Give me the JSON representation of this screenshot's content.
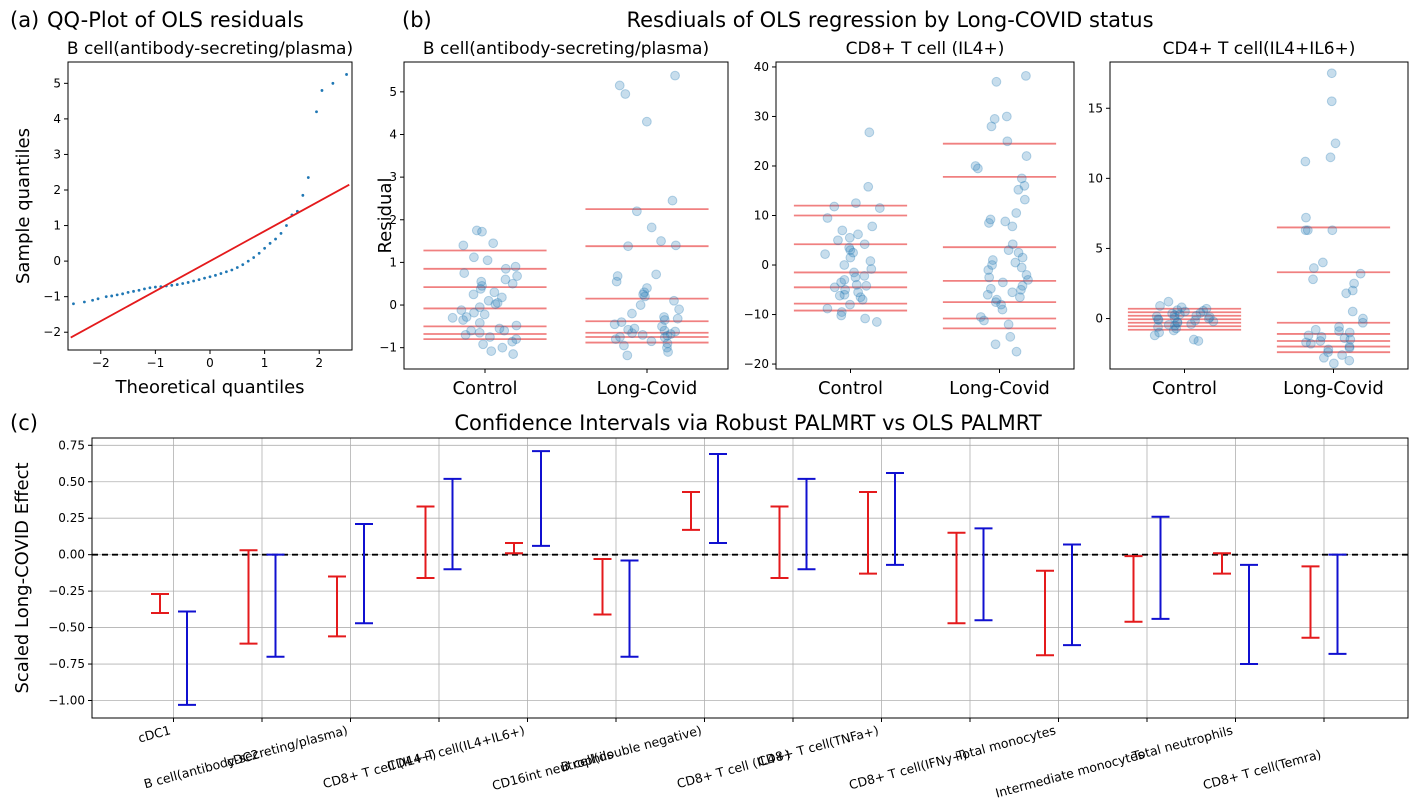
{
  "figure": {
    "panel_a_letter": "(a)",
    "panel_b_letter": "(b)",
    "panel_c_letter": "(c)",
    "panel_b_suptitle": "Resdiuals of OLS regression by Long-COVID status"
  },
  "chart_data": [
    {
      "id": "qq",
      "type": "scatter",
      "title": "QQ-Plot of OLS residuals",
      "subtitle": "B cell(antibody-secreting/plasma)",
      "xlabel": "Theoretical quantiles",
      "ylabel": "Sample quantiles",
      "xlim": [
        -2.6,
        2.6
      ],
      "ylim": [
        -2.5,
        5.6
      ],
      "xticks": [
        -2,
        -1,
        0,
        1,
        2
      ],
      "yticks": [
        -2,
        -1,
        0,
        1,
        2,
        3,
        4,
        5
      ],
      "grid": false,
      "point_color": "#1f77b4",
      "line_color": "#e41a1c",
      "reference_line": {
        "x": [
          -2.55,
          2.55
        ],
        "y": [
          -2.15,
          2.15
        ]
      },
      "points": [
        [
          -2.5,
          -1.2
        ],
        [
          -2.3,
          -1.15
        ],
        [
          -2.15,
          -1.1
        ],
        [
          -2.05,
          -1.06
        ],
        [
          -1.9,
          -1.0
        ],
        [
          -1.8,
          -0.98
        ],
        [
          -1.7,
          -0.95
        ],
        [
          -1.6,
          -0.92
        ],
        [
          -1.5,
          -0.88
        ],
        [
          -1.4,
          -0.85
        ],
        [
          -1.3,
          -0.82
        ],
        [
          -1.2,
          -0.78
        ],
        [
          -1.1,
          -0.75
        ],
        [
          -1.0,
          -0.73
        ],
        [
          -0.9,
          -0.72
        ],
        [
          -0.8,
          -0.7
        ],
        [
          -0.7,
          -0.68
        ],
        [
          -0.6,
          -0.66
        ],
        [
          -0.5,
          -0.63
        ],
        [
          -0.4,
          -0.6
        ],
        [
          -0.3,
          -0.56
        ],
        [
          -0.2,
          -0.52
        ],
        [
          -0.1,
          -0.48
        ],
        [
          0.0,
          -0.44
        ],
        [
          0.1,
          -0.4
        ],
        [
          0.2,
          -0.35
        ],
        [
          0.3,
          -0.3
        ],
        [
          0.4,
          -0.25
        ],
        [
          0.5,
          -0.18
        ],
        [
          0.6,
          -0.1
        ],
        [
          0.7,
          0.0
        ],
        [
          0.8,
          0.1
        ],
        [
          0.9,
          0.22
        ],
        [
          1.0,
          0.36
        ],
        [
          1.1,
          0.5
        ],
        [
          1.2,
          0.62
        ],
        [
          1.3,
          0.78
        ],
        [
          1.4,
          1.0
        ],
        [
          1.5,
          1.3
        ],
        [
          1.6,
          1.4
        ],
        [
          1.7,
          1.85
        ],
        [
          1.8,
          2.35
        ],
        [
          1.95,
          4.2
        ],
        [
          2.05,
          4.8
        ],
        [
          2.25,
          5.0
        ],
        [
          2.5,
          5.25
        ]
      ]
    },
    {
      "id": "res1",
      "type": "scatter",
      "title": "B cell(antibody-secreting/plasma)",
      "ylabel": "Residual",
      "categories": [
        "Control",
        "Long-Covid"
      ],
      "ylim": [
        -1.5,
        5.7
      ],
      "yticks": [
        -1,
        0,
        1,
        2,
        3,
        4,
        5
      ],
      "grid": false,
      "point_color": "#1f77b4",
      "hline_color": "#f08080",
      "hlines": {
        "Control": [
          1.28,
          0.85,
          0.42,
          -0.08,
          -0.5,
          -0.68,
          -0.8
        ],
        "Long-Covid": [
          2.25,
          1.38,
          0.15,
          -0.38,
          -0.65,
          -0.75,
          -0.88
        ]
      },
      "points": {
        "Control": [
          1.75,
          1.72,
          1.45,
          1.4,
          1.12,
          1.05,
          0.9,
          0.85,
          0.75,
          0.68,
          0.6,
          0.55,
          0.5,
          0.38,
          0.3,
          0.25,
          0.18,
          0.1,
          0.02,
          -0.05,
          -0.12,
          -0.18,
          -0.22,
          -0.3,
          -0.35,
          -0.42,
          -0.48,
          -0.55,
          -0.6,
          -0.65,
          -0.7,
          -0.75,
          -0.8,
          -0.86,
          -0.92,
          -1.0,
          -1.08,
          -1.15,
          0.45,
          -0.28,
          0.05,
          -0.6
        ],
        "Long-Covid": [
          5.38,
          5.15,
          4.95,
          4.3,
          2.45,
          2.2,
          1.82,
          1.5,
          1.4,
          1.38,
          0.72,
          0.68,
          0.55,
          0.4,
          0.3,
          0.2,
          0.1,
          0.0,
          -0.1,
          -0.2,
          -0.28,
          -0.32,
          -0.4,
          -0.45,
          -0.5,
          -0.55,
          -0.58,
          -0.62,
          -0.66,
          -0.7,
          -0.72,
          -0.76,
          -0.8,
          -0.85,
          -0.9,
          -0.95,
          -1.0,
          -1.1,
          -1.18,
          0.25,
          -0.35,
          -0.6,
          -0.68,
          -0.75
        ]
      }
    },
    {
      "id": "res2",
      "type": "scatter",
      "title": "CD8+ T cell (IL4+)",
      "categories": [
        "Control",
        "Long-Covid"
      ],
      "ylim": [
        -21,
        41
      ],
      "yticks": [
        -20,
        -10,
        0,
        10,
        20,
        30,
        40
      ],
      "grid": false,
      "point_color": "#1f77b4",
      "hline_color": "#f08080",
      "hlines": {
        "Control": [
          12,
          10,
          4.2,
          -1.5,
          -4.5,
          -7.8,
          -9.2
        ],
        "Long-Covid": [
          24.5,
          17.8,
          3.6,
          -3.2,
          -7.5,
          -10.8,
          -12.8
        ]
      },
      "points": {
        "Control": [
          26.8,
          15.8,
          12.5,
          11.8,
          11.5,
          9.5,
          7.8,
          7.0,
          6.2,
          5.5,
          5.0,
          4.2,
          3.5,
          3.0,
          2.2,
          1.5,
          0.8,
          0.0,
          -0.8,
          -1.5,
          -2.2,
          -3.0,
          -3.5,
          -4.0,
          -4.5,
          -5.0,
          -5.5,
          -6.0,
          -6.5,
          -7.0,
          -8.0,
          -8.8,
          -9.5,
          -10.2,
          -10.8,
          -11.5,
          2.5,
          -2.5,
          -4.2,
          -6.2
        ],
        "Long-Covid": [
          38.2,
          37.0,
          30.0,
          29.5,
          28.0,
          25.0,
          22.0,
          20.0,
          19.5,
          17.5,
          16.0,
          15.2,
          13.2,
          10.5,
          9.2,
          8.8,
          8.5,
          7.8,
          4.2,
          3.0,
          2.5,
          1.5,
          1.0,
          0.5,
          -0.5,
          -1.0,
          -2.0,
          -2.5,
          -3.0,
          -3.5,
          -4.2,
          -5.0,
          -5.5,
          -6.0,
          -6.5,
          -7.0,
          -8.0,
          -9.0,
          -10.5,
          -11.2,
          -12.0,
          -14.5,
          -16.0,
          -17.5,
          0.0,
          -4.8,
          -7.5
        ]
      }
    },
    {
      "id": "res3",
      "type": "scatter",
      "title": "CD4+ T cell(IL4+IL6+)",
      "categories": [
        "Control",
        "Long-Covid"
      ],
      "ylim": [
        -3.6,
        18.3
      ],
      "yticks": [
        0,
        5,
        10,
        15
      ],
      "grid": false,
      "point_color": "#1f77b4",
      "hline_color": "#f08080",
      "hlines": {
        "Control": [
          0.7,
          0.45,
          0.2,
          -0.05,
          -0.3,
          -0.55,
          -0.8
        ],
        "Long-Covid": [
          6.5,
          3.3,
          -0.3,
          -1.1,
          -1.6,
          -2.0,
          -2.4
        ]
      },
      "points": {
        "Control": [
          1.2,
          0.9,
          0.8,
          0.7,
          0.6,
          0.5,
          0.4,
          0.35,
          0.3,
          0.2,
          0.15,
          0.1,
          0.05,
          0.0,
          -0.05,
          -0.1,
          -0.15,
          -0.2,
          -0.3,
          -0.4,
          -0.5,
          -0.6,
          -0.7,
          -0.85,
          -1.0,
          -1.2,
          -1.5,
          -1.6,
          0.25,
          -0.25,
          0.55,
          -0.45
        ],
        "Long-Covid": [
          17.5,
          15.5,
          12.5,
          11.5,
          11.2,
          7.2,
          6.3,
          6.3,
          6.3,
          4.0,
          3.6,
          3.2,
          2.8,
          2.5,
          2.0,
          1.8,
          0.5,
          0.0,
          -0.3,
          -0.6,
          -0.8,
          -1.0,
          -1.2,
          -1.3,
          -1.5,
          -1.6,
          -1.8,
          -2.0,
          -2.2,
          -2.4,
          -2.6,
          -2.8,
          -3.0,
          -3.2,
          -0.9,
          -1.4,
          -1.7,
          -2.1
        ]
      }
    },
    {
      "id": "ci",
      "type": "errorbar",
      "title": "Confidence Intervals via Robust PALMRT vs OLS PALMRT",
      "ylabel": "Scaled Long-COVID Effect",
      "ylim": [
        -1.12,
        0.8
      ],
      "yticks": [
        -1.0,
        -0.75,
        -0.5,
        -0.25,
        0.0,
        0.25,
        0.5,
        0.75
      ],
      "ytick_labels": [
        "−1.00",
        "−0.75",
        "−0.50",
        "−0.25",
        "0.00",
        "0.25",
        "0.50",
        "0.75"
      ],
      "grid": true,
      "reference_line": 0,
      "categories": [
        "cDC1",
        "cDC2",
        "B cell(antibody-secreting/plasma)",
        "CD8+ T cell (IL4+)",
        "CD4+ T cell(IL4+IL6+)",
        "CD16int neutrophils",
        "B cell(double negative)",
        "CD8+ T cell (IL4+)",
        "CD8+ T cell(TNFa+)",
        "CD8+ T cell(IFNy+)",
        "Total monocytes",
        "Intermediate monocytes",
        "Total neutrophils",
        "CD8+ T cell(Temra)"
      ],
      "series": [
        {
          "color": "#e41a1c",
          "intervals": [
            [
              -0.4,
              -0.27
            ],
            [
              -0.61,
              0.03
            ],
            [
              -0.56,
              -0.15
            ],
            [
              -0.16,
              0.33
            ],
            [
              0.01,
              0.08
            ],
            [
              -0.41,
              -0.03
            ],
            [
              0.17,
              0.43
            ],
            [
              -0.16,
              0.33
            ],
            [
              -0.13,
              0.43
            ],
            [
              -0.47,
              0.15
            ],
            [
              -0.69,
              -0.11
            ],
            [
              -0.46,
              -0.01
            ],
            [
              -0.13,
              0.01
            ],
            [
              -0.57,
              -0.08
            ]
          ]
        },
        {
          "color": "#1010d0",
          "intervals": [
            [
              -1.03,
              -0.39
            ],
            [
              -0.7,
              0.0
            ],
            [
              -0.47,
              0.21
            ],
            [
              -0.1,
              0.52
            ],
            [
              0.06,
              0.71
            ],
            [
              -0.7,
              -0.04
            ],
            [
              0.08,
              0.69
            ],
            [
              -0.1,
              0.52
            ],
            [
              -0.07,
              0.56
            ],
            [
              -0.45,
              0.18
            ],
            [
              -0.62,
              0.07
            ],
            [
              -0.44,
              0.26
            ],
            [
              -0.75,
              -0.07
            ],
            [
              -0.68,
              0.0
            ]
          ]
        }
      ]
    }
  ]
}
